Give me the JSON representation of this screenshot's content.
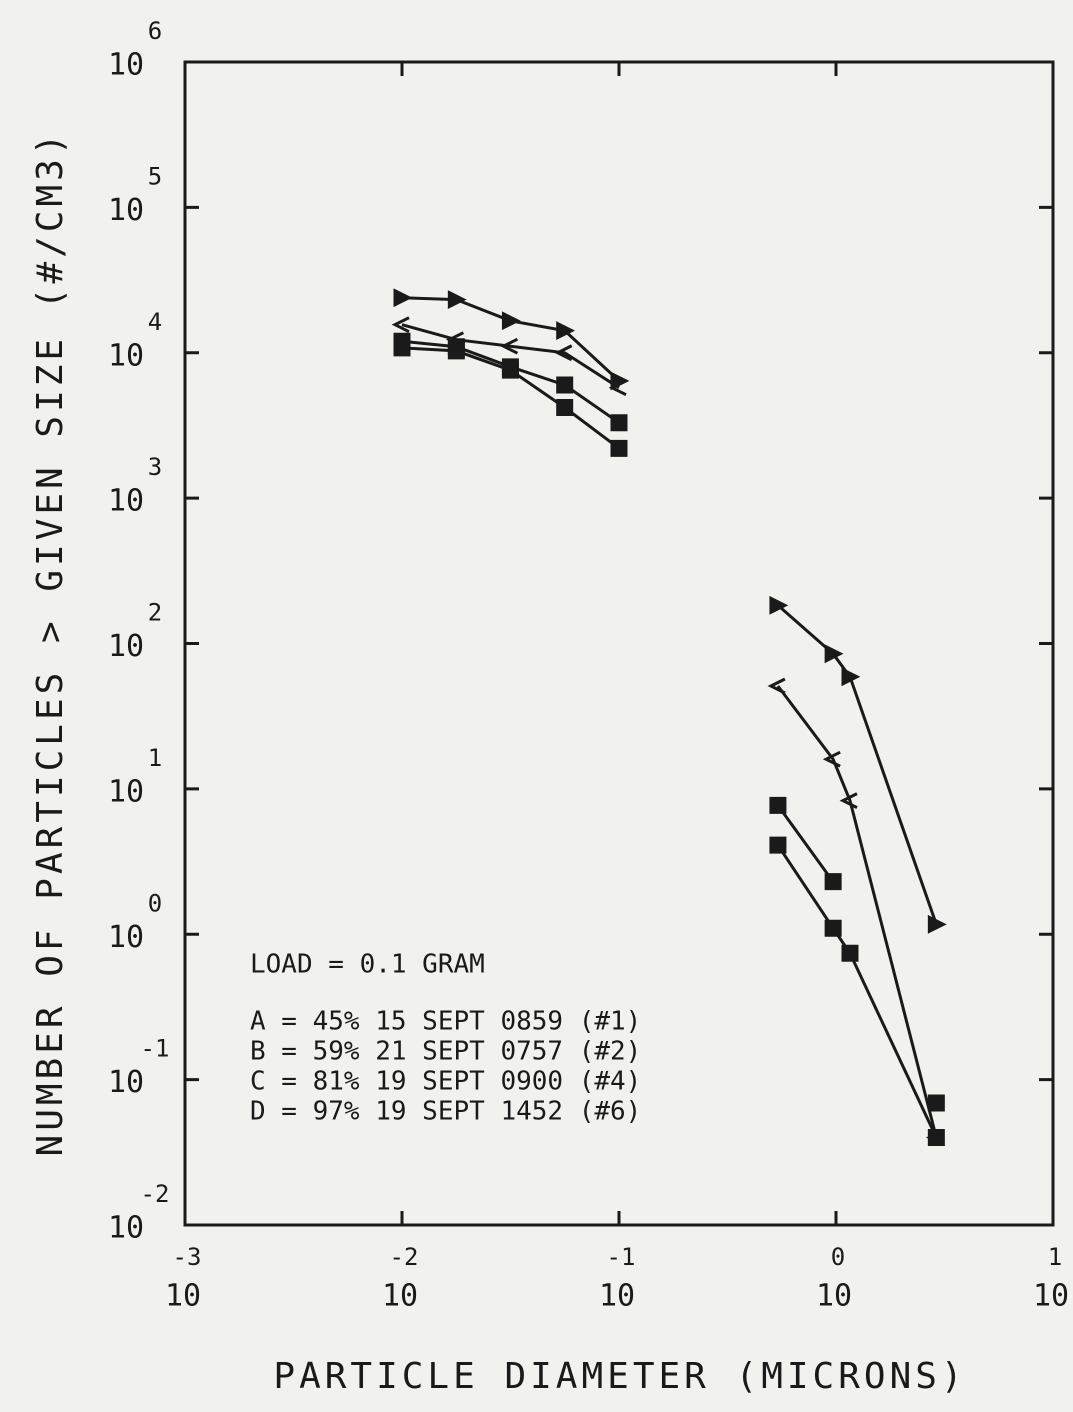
{
  "chart_data": {
    "type": "line",
    "xlabel": "PARTICLE DIAMETER (MICRONS)",
    "ylabel": "NUMBER OF PARTICLES > GIVEN SIZE (#/CM3)",
    "annotation": "LOAD = 0.1 GRAM",
    "xscale": "log",
    "yscale": "log",
    "xlim": [
      0.001,
      10
    ],
    "ylim": [
      0.01,
      1000000
    ],
    "xticks": [
      {
        "value": 0.001,
        "label": "10",
        "exponent": "-3"
      },
      {
        "value": 0.01,
        "label": "10",
        "exponent": "-2"
      },
      {
        "value": 0.1,
        "label": "10",
        "exponent": "-1"
      },
      {
        "value": 1,
        "label": "10",
        "exponent": "0"
      },
      {
        "value": 10,
        "label": "10",
        "exponent": "1"
      }
    ],
    "yticks": [
      {
        "value": 0.01,
        "label": "10",
        "exponent": "-2"
      },
      {
        "value": 0.1,
        "label": "10",
        "exponent": "-1"
      },
      {
        "value": 1,
        "label": "10",
        "exponent": "0"
      },
      {
        "value": 10,
        "label": "10",
        "exponent": "1"
      },
      {
        "value": 100,
        "label": "10",
        "exponent": "2"
      },
      {
        "value": 1000,
        "label": "10",
        "exponent": "3"
      },
      {
        "value": 10000,
        "label": "10",
        "exponent": "4"
      },
      {
        "value": 100000,
        "label": "10",
        "exponent": "5"
      },
      {
        "value": 1000000,
        "label": "10",
        "exponent": "6"
      }
    ],
    "x": [
      0.01,
      0.0178,
      0.0316,
      0.0562,
      0.1,
      0.54,
      0.97,
      1.16,
      2.9
    ],
    "series": [
      {
        "name": "A = 45%  15 SEPT 0859 (#1)",
        "marker": "square",
        "color": "#1a1a1a",
        "values": [
          10800,
          10300,
          7600,
          4200,
          2200,
          4.1,
          1.1,
          0.74,
          0.04
        ]
      },
      {
        "name": "B = 59%  21 SEPT 0757 (#2)",
        "marker": "square",
        "color": "#1a1a1a",
        "values": [
          12000,
          11000,
          8000,
          6000,
          3300,
          7.7,
          2.3,
          null,
          0.069
        ]
      },
      {
        "name": "C = 81%  19 SEPT 0900 (#4)",
        "marker": "chevron",
        "color": "#1a1a1a",
        "values": [
          15600,
          12300,
          11100,
          10000,
          5750,
          51,
          16,
          8.3,
          0.04
        ]
      },
      {
        "name": "D = 97%  19 SEPT 1452 (#6)",
        "marker": "triangle",
        "color": "#1a1a1a",
        "values": [
          23900,
          23200,
          16600,
          14200,
          6400,
          183,
          85,
          59,
          1.17
        ]
      }
    ]
  }
}
